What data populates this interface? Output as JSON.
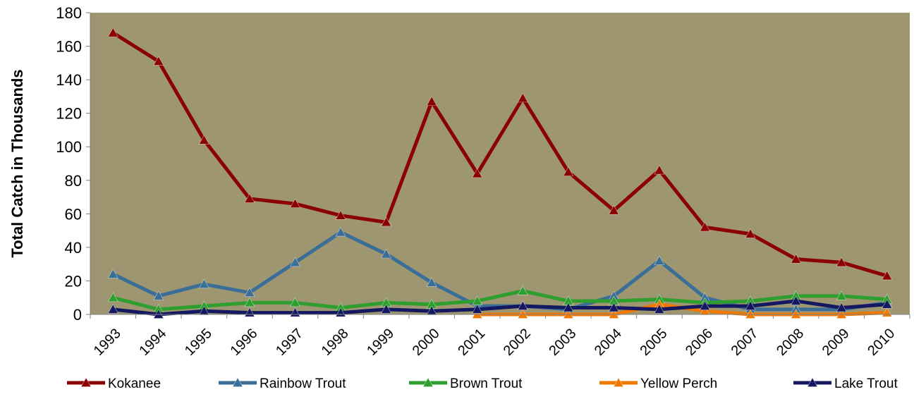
{
  "chart_data": {
    "type": "line",
    "title": "",
    "xlabel": "",
    "ylabel": "Total Catch in Thousands",
    "ylim": [
      0,
      180
    ],
    "yticks": [
      0,
      20,
      40,
      60,
      80,
      100,
      120,
      140,
      160,
      180
    ],
    "grid": false,
    "legend_position": "bottom",
    "plot_background": "#9E9670",
    "categories": [
      "1993",
      "1994",
      "1995",
      "1996",
      "1997",
      "1998",
      "1999",
      "2000",
      "2001",
      "2002",
      "2003",
      "2004",
      "2005",
      "2006",
      "2007",
      "2008",
      "2009",
      "2010"
    ],
    "series": [
      {
        "name": "Kokanee",
        "color": "#8B0000",
        "marker": "triangle",
        "values": [
          168,
          151,
          104,
          69,
          66,
          59,
          55,
          127,
          84,
          129,
          85,
          62,
          86,
          52,
          48,
          33,
          31,
          23
        ]
      },
      {
        "name": "Rainbow Trout",
        "color": "#3A6E96",
        "marker": "triangle",
        "values": [
          24,
          11,
          18,
          13,
          31,
          49,
          36,
          19,
          5,
          5,
          3,
          11,
          32,
          10,
          3,
          3,
          3,
          7
        ]
      },
      {
        "name": "Brown Trout",
        "color": "#2E9E2E",
        "marker": "triangle",
        "values": [
          10,
          3,
          5,
          7,
          7,
          4,
          7,
          6,
          8,
          14,
          8,
          8,
          9,
          7,
          8,
          11,
          11,
          9
        ]
      },
      {
        "name": "Yellow Perch",
        "color": "#F07800",
        "marker": "triangle",
        "values": [
          null,
          null,
          null,
          null,
          null,
          null,
          null,
          null,
          0,
          0,
          0,
          0,
          6,
          2,
          0,
          0,
          0,
          1
        ]
      },
      {
        "name": "Lake Trout",
        "color": "#141860",
        "marker": "triangle",
        "values": [
          3,
          0,
          2,
          1,
          1,
          1,
          3,
          2,
          3,
          5,
          4,
          4,
          3,
          5,
          5,
          8,
          4,
          6
        ]
      }
    ]
  }
}
